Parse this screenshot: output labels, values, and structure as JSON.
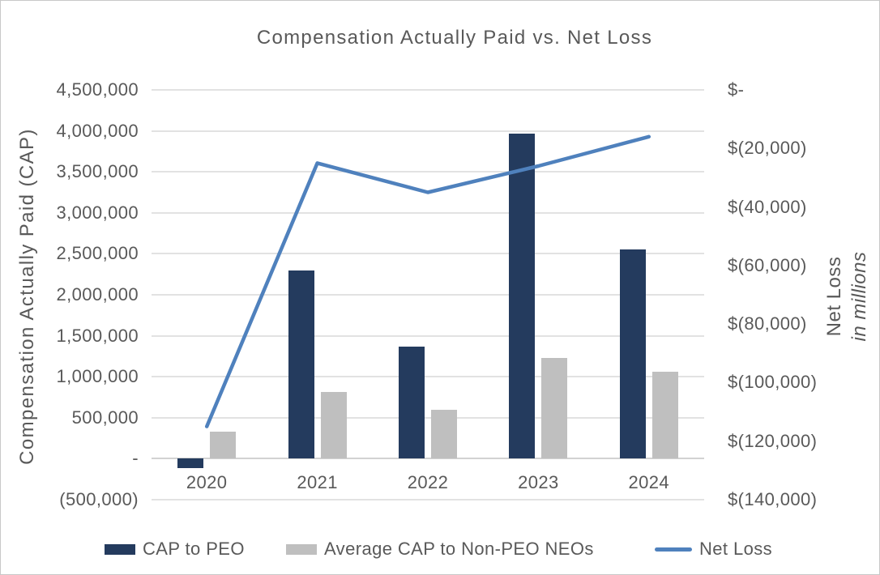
{
  "title": "Compensation Actually Paid vs. Net Loss",
  "chart_data": {
    "type": "combo-bar-line",
    "title": "Compensation Actually Paid vs. Net Loss",
    "categories": [
      "2020",
      "2021",
      "2022",
      "2023",
      "2024"
    ],
    "bar_series": [
      {
        "name": "CAP to PEO",
        "color": "#243b5e",
        "values": [
          -110000,
          2300000,
          1370000,
          3970000,
          2550000
        ]
      },
      {
        "name": "Average CAP to Non-PEO NEOs",
        "color": "#bfbfbf",
        "values": [
          330000,
          810000,
          600000,
          1230000,
          1060000
        ]
      }
    ],
    "line_series": {
      "name": "Net Loss",
      "color": "#4f81bd",
      "axis": "secondary",
      "values": [
        -115000,
        -25000,
        -35000,
        -26000,
        -16000
      ]
    },
    "left_axis": {
      "title": "Compensation Actually Paid (CAP)",
      "min": -500000,
      "max": 4500000,
      "step": 500000,
      "tick_labels": [
        "4,500,000",
        "4,000,000",
        "3,500,000",
        "3,000,000",
        "2,500,000",
        "2,000,000",
        "1,500,000",
        "1,000,000",
        "500,000",
        "-",
        "(500,000)"
      ]
    },
    "right_axis": {
      "title_line1": "Net Loss",
      "title_line2": "in millions",
      "min": -140000,
      "max": 0,
      "step": 20000,
      "tick_labels": [
        "$-",
        "$(20,000)",
        "$(40,000)",
        "$(60,000)",
        "$(80,000)",
        "$(100,000)",
        "$(120,000)",
        "$(140,000)"
      ]
    },
    "grid": true,
    "legend_position": "bottom",
    "legend_labels": [
      "CAP to PEO",
      "Average CAP to Non-PEO NEOs",
      "Net Loss"
    ]
  },
  "colors": {
    "bar_primary": "#243b5e",
    "bar_secondary": "#bfbfbf",
    "line": "#4f81bd",
    "text": "#595959",
    "gridline": "#e2e2e2",
    "axis_line": "#d2d2d2",
    "border": "#c8c8c8"
  }
}
